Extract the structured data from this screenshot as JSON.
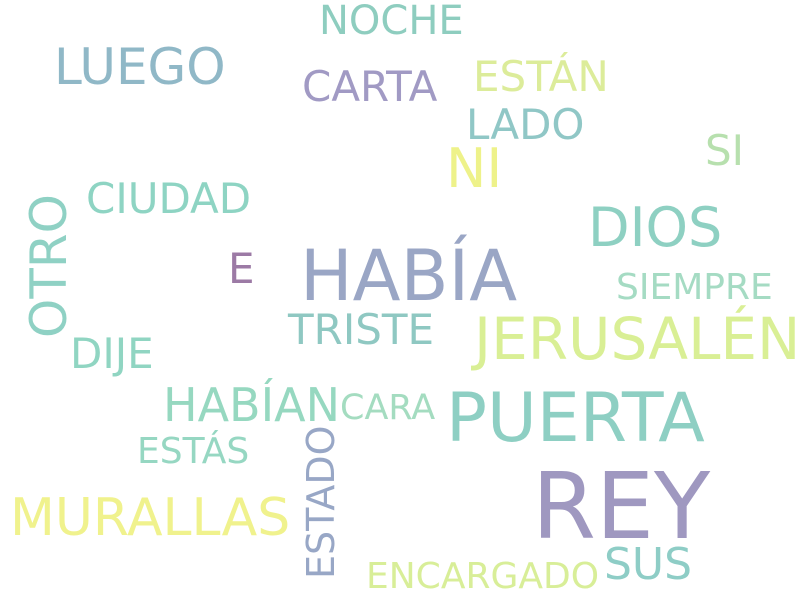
{
  "words": {
    "noche": {
      "text": "NOCHE",
      "color": "#8ecdbf"
    },
    "luego": {
      "text": "LUEGO",
      "color": "#90b8c7"
    },
    "carta": {
      "text": "CARTA",
      "color": "#a19ac4"
    },
    "estan": {
      "text": "ESTÁN",
      "color": "#dcec9a"
    },
    "lado": {
      "text": "LADO",
      "color": "#90c7c6"
    },
    "ni": {
      "text": "NI",
      "color": "#eef28a"
    },
    "si": {
      "text": "SI",
      "color": "#b7e0ae"
    },
    "ciudad": {
      "text": "CIUDAD",
      "color": "#8ed4c3"
    },
    "dios": {
      "text": "DIOS",
      "color": "#8ed0c2"
    },
    "otro": {
      "text": "OTRO",
      "color": "#8fd1c4"
    },
    "e": {
      "text": "E",
      "color": "#9c7aa5"
    },
    "habia": {
      "text": "HABÍA",
      "color": "#9aa6c5"
    },
    "siempre": {
      "text": "SIEMPRE",
      "color": "#a5dbc3"
    },
    "triste": {
      "text": "TRISTE",
      "color": "#8fc8c2"
    },
    "jerusalen": {
      "text": "JERUSALÉN",
      "color": "#d9ef95"
    },
    "dije": {
      "text": "DIJE",
      "color": "#90d5c2"
    },
    "habian": {
      "text": "HABÍAN",
      "color": "#96d8c0"
    },
    "cara": {
      "text": "CARA",
      "color": "#a4dcc0"
    },
    "puerta": {
      "text": "PUERTA",
      "color": "#8ecfc3"
    },
    "estas": {
      "text": "ESTÁS",
      "color": "#96d7c2"
    },
    "estado": {
      "text": "ESTADO",
      "color": "#98a7c6"
    },
    "murallas": {
      "text": "MURALLAS",
      "color": "#f0f28d"
    },
    "rey": {
      "text": "REY",
      "color": "#9f98c0"
    },
    "encargado": {
      "text": "ENCARGADO",
      "color": "#d8ee98"
    },
    "sus": {
      "text": "SUS",
      "color": "#8ecdc6"
    }
  }
}
